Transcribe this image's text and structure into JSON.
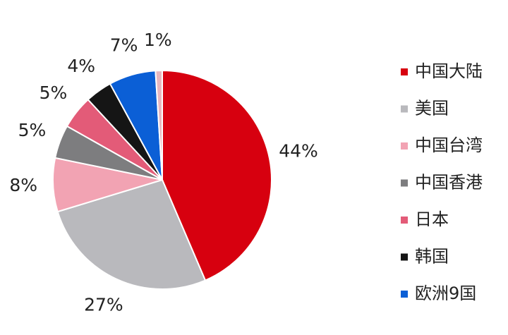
{
  "chart_data": {
    "type": "pie",
    "categories": [
      "中国大陆",
      "美国",
      "中国台湾",
      "中国香港",
      "日本",
      "韩国",
      "欧洲9国",
      null
    ],
    "values": [
      44,
      27,
      8,
      5,
      5,
      4,
      7,
      1
    ],
    "value_labels": [
      "44%",
      "27%",
      "8%",
      "5%",
      "5%",
      "4%",
      "7%",
      "1%"
    ],
    "colors": [
      "#d7000f",
      "#b9b9bd",
      "#f2a3b3",
      "#7d7d7f",
      "#e35b78",
      "#151515",
      "#0b5fd6",
      "#e8b7bf"
    ],
    "legend": "right"
  }
}
